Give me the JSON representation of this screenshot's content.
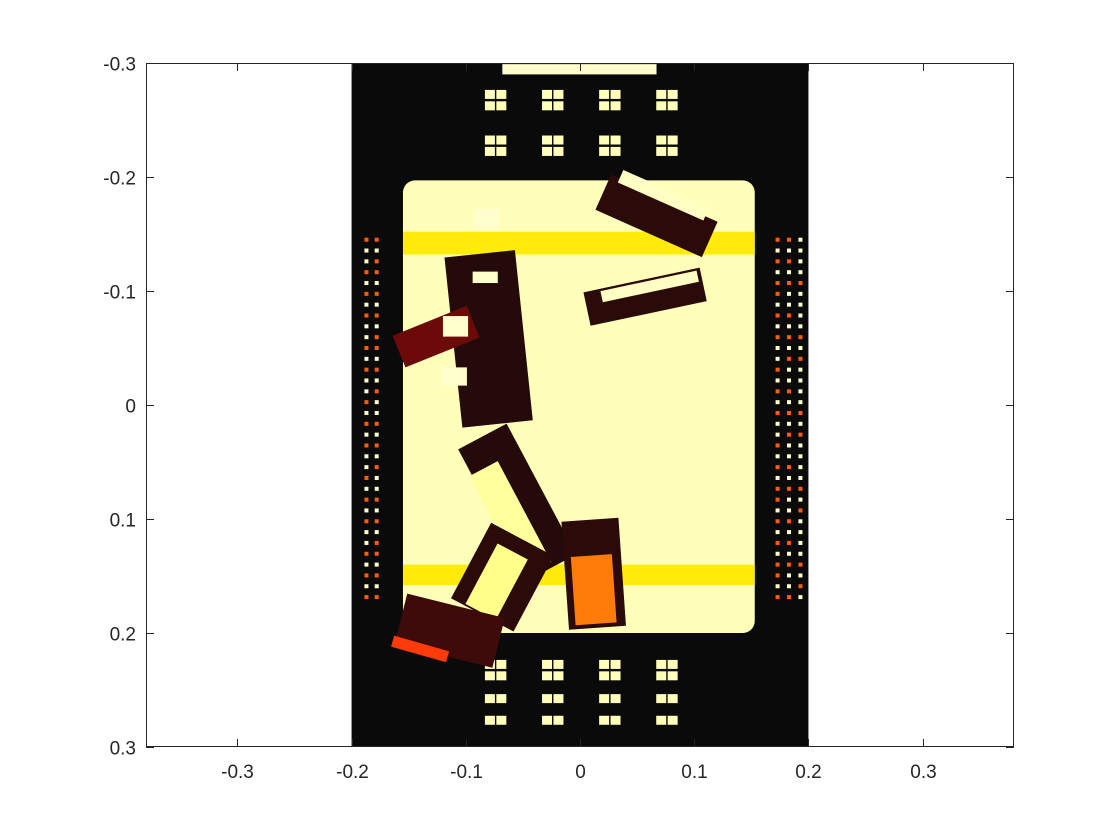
{
  "chart_data": {
    "type": "heatmap",
    "title": "",
    "xlabel": "",
    "ylabel": "",
    "colormap": "hot",
    "xlim": [
      -0.38,
      0.38
    ],
    "ylim": [
      -0.3,
      0.3
    ],
    "y_direction": "reverse",
    "grid": false,
    "image_extent": {
      "x": [
        -0.2,
        0.2
      ],
      "y": [
        -0.3,
        0.3
      ]
    },
    "x_ticks": [
      -0.3,
      -0.2,
      -0.1,
      0,
      0.1,
      0.2,
      0.3
    ],
    "x_tick_labels": [
      "-0.3",
      "-0.2",
      "-0.1",
      "0",
      "0.1",
      "0.2",
      "0.3"
    ],
    "y_ticks": [
      -0.3,
      -0.2,
      -0.1,
      0,
      0.1,
      0.2,
      0.3
    ],
    "y_tick_labels": [
      "-0.3",
      "-0.2",
      "-0.1",
      "0",
      "0.1",
      "0.2",
      "0.3"
    ],
    "regions": [
      {
        "kind": "platform",
        "x": [
          -0.155,
          0.153
        ],
        "y": [
          -0.197,
          0.2
        ],
        "value": 0.93
      },
      {
        "kind": "band",
        "x": [
          -0.155,
          0.153
        ],
        "y": [
          -0.152,
          -0.132
        ],
        "value": 0.72
      },
      {
        "kind": "band",
        "x": [
          -0.155,
          0.153
        ],
        "y": [
          0.14,
          0.158
        ],
        "value": 0.72
      },
      {
        "kind": "strip",
        "x": [
          -0.068,
          0.067
        ],
        "y": [
          -0.299,
          -0.29
        ],
        "value": 0.95
      }
    ],
    "blocks": [
      {
        "kind": "dark",
        "cx": 0.067,
        "cy": -0.166,
        "w": 0.102,
        "h": 0.034,
        "angle": 24,
        "value": 0.05
      },
      {
        "kind": "bright",
        "cx": 0.073,
        "cy": -0.184,
        "w": 0.082,
        "h": 0.012,
        "angle": 24,
        "value": 0.94
      },
      {
        "kind": "dark",
        "cx": 0.057,
        "cy": -0.095,
        "w": 0.104,
        "h": 0.03,
        "angle": -12,
        "value": 0.05
      },
      {
        "kind": "bright",
        "cx": 0.061,
        "cy": -0.104,
        "w": 0.086,
        "h": 0.01,
        "angle": -12,
        "value": 0.94
      },
      {
        "kind": "dark",
        "cx": -0.08,
        "cy": -0.058,
        "w": 0.062,
        "h": 0.15,
        "angle": -6,
        "value": 0.04
      },
      {
        "kind": "dark",
        "cx": -0.126,
        "cy": -0.06,
        "w": 0.07,
        "h": 0.03,
        "angle": -22,
        "value": 0.15
      },
      {
        "kind": "dark",
        "cx": -0.055,
        "cy": 0.085,
        "w": 0.048,
        "h": 0.13,
        "angle": -28,
        "value": 0.04
      },
      {
        "kind": "bright",
        "cx": -0.061,
        "cy": 0.1,
        "w": 0.028,
        "h": 0.1,
        "angle": -28,
        "value": 0.9
      },
      {
        "kind": "dark",
        "cx": -0.068,
        "cy": 0.151,
        "w": 0.062,
        "h": 0.075,
        "angle": 28,
        "value": 0.05
      },
      {
        "kind": "bright",
        "cx": -0.073,
        "cy": 0.155,
        "w": 0.03,
        "h": 0.06,
        "angle": 28,
        "value": 0.88
      },
      {
        "kind": "dark",
        "cx": 0.012,
        "cy": 0.148,
        "w": 0.05,
        "h": 0.095,
        "angle": -4,
        "value": 0.05
      },
      {
        "kind": "warm",
        "cx": 0.012,
        "cy": 0.162,
        "w": 0.036,
        "h": 0.06,
        "angle": -4,
        "value": 0.55
      },
      {
        "kind": "dark",
        "cx": -0.114,
        "cy": 0.198,
        "w": 0.088,
        "h": 0.045,
        "angle": 14,
        "value": 0.08
      },
      {
        "kind": "warm",
        "cx": -0.14,
        "cy": 0.214,
        "w": 0.05,
        "h": 0.01,
        "angle": 16,
        "value": 0.45
      }
    ],
    "markers": [
      {
        "kind": "pad",
        "x": -0.082,
        "y": -0.163,
        "w": 0.022,
        "h": 0.018,
        "value": 0.95
      },
      {
        "kind": "pad",
        "x": -0.083,
        "y": -0.112,
        "w": 0.022,
        "h": 0.01,
        "value": 0.95
      },
      {
        "kind": "pad",
        "x": -0.109,
        "y": -0.069,
        "w": 0.022,
        "h": 0.018,
        "value": 0.95
      },
      {
        "kind": "pad",
        "x": -0.11,
        "y": -0.025,
        "w": 0.022,
        "h": 0.016,
        "value": 0.95
      }
    ]
  }
}
